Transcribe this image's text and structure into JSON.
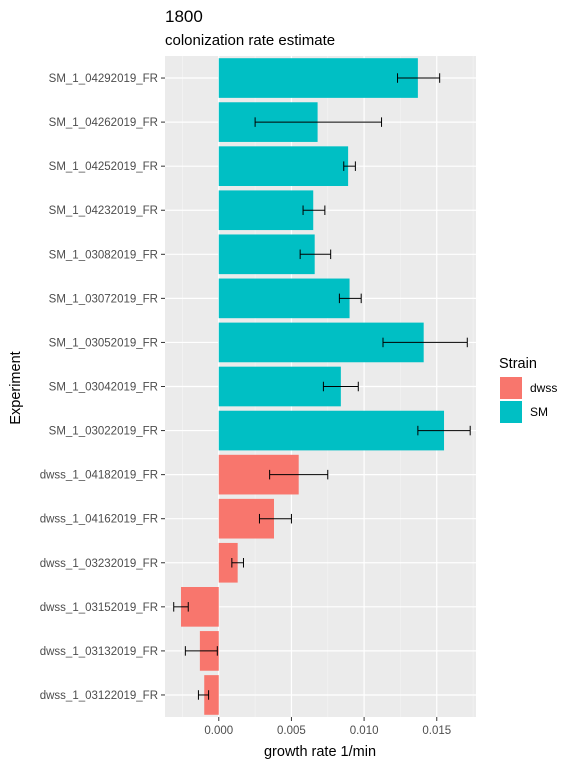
{
  "chart_data": {
    "type": "bar",
    "orientation": "horizontal",
    "title": "1800",
    "subtitle": "colonization rate estimate",
    "xlabel": "growth rate 1/min",
    "ylabel": "Experiment",
    "xlim": [
      -0.0037,
      0.0177
    ],
    "x_ticks": [
      0.0,
      0.005,
      0.01,
      0.015
    ],
    "x_tick_labels": [
      "0.000",
      "0.005",
      "0.010",
      "0.015"
    ],
    "grid": true,
    "legend": {
      "title": "Strain",
      "position": "right",
      "entries": [
        {
          "label": "dwss",
          "color": "#F8766D"
        },
        {
          "label": "SM",
          "color": "#00BFC4"
        }
      ]
    },
    "categories": [
      "SM_1_04292019_FR",
      "SM_1_04262019_FR",
      "SM_1_04252019_FR",
      "SM_1_04232019_FR",
      "SM_1_03082019_FR",
      "SM_1_03072019_FR",
      "SM_1_03052019_FR",
      "SM_1_03042019_FR",
      "SM_1_03022019_FR",
      "dwss_1_04182019_FR",
      "dwss_1_04162019_FR",
      "dwss_1_03232019_FR",
      "dwss_1_03152019_FR",
      "dwss_1_03132019_FR",
      "dwss_1_03122019_FR"
    ],
    "strain": [
      "SM",
      "SM",
      "SM",
      "SM",
      "SM",
      "SM",
      "SM",
      "SM",
      "SM",
      "dwss",
      "dwss",
      "dwss",
      "dwss",
      "dwss",
      "dwss"
    ],
    "values": [
      0.0137,
      0.0068,
      0.0089,
      0.0065,
      0.0066,
      0.009,
      0.0141,
      0.0084,
      0.0155,
      0.0055,
      0.0038,
      0.0013,
      -0.0026,
      -0.0013,
      -0.001
    ],
    "error_low": [
      0.0123,
      0.0025,
      0.0086,
      0.0058,
      0.0056,
      0.0083,
      0.0113,
      0.0072,
      0.0137,
      0.0035,
      0.0028,
      0.0009,
      -0.0031,
      -0.0023,
      -0.0014
    ],
    "error_high": [
      0.0152,
      0.0112,
      0.0094,
      0.0073,
      0.0077,
      0.0098,
      0.0171,
      0.0096,
      0.0173,
      0.0075,
      0.005,
      0.0017,
      -0.0021,
      -0.0001,
      -0.0007
    ]
  }
}
